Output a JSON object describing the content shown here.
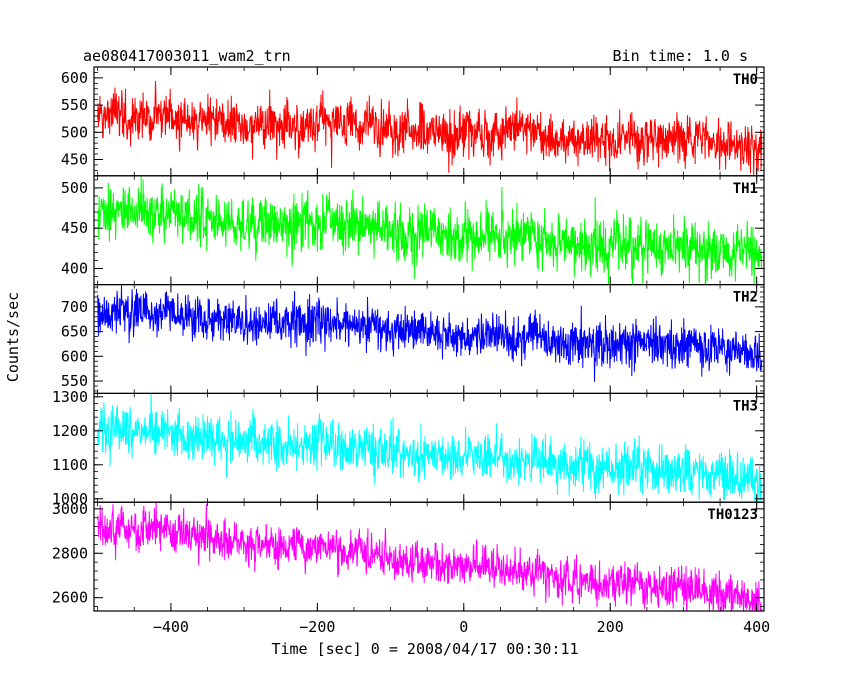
{
  "chart_data": {
    "type": "line",
    "title": "ae080417003011_wam2_trn",
    "subtitle": "Bin time: 1.0 s",
    "xlabel": "Time [sec] 0 = 2008/04/17 00:30:11",
    "ylabel": "Counts/sec",
    "xlim": [
      -505,
      410
    ],
    "x_ticks": [
      -400,
      -200,
      0,
      200,
      400
    ],
    "x_tick_labels": [
      "−400",
      "−200",
      "0",
      "200",
      "400"
    ],
    "grid": false,
    "panels": [
      {
        "name": "TH0",
        "color": "#ff0000",
        "ylim": [
          420,
          620
        ],
        "ticks": [
          450,
          500,
          550,
          600
        ],
        "tick_labels": [
          "450",
          "500",
          "550",
          "600"
        ],
        "start": 530,
        "end": 478,
        "noise": 27,
        "lag": 20
      },
      {
        "name": "TH1",
        "color": "#00ff00",
        "ylim": [
          380,
          515
        ],
        "ticks": [
          400,
          450,
          500
        ],
        "tick_labels": [
          "400",
          "450",
          "500"
        ],
        "start": 472,
        "end": 418,
        "noise": 21,
        "lag": 12
      },
      {
        "name": "TH2",
        "color": "#0000ff",
        "ylim": [
          525,
          745
        ],
        "ticks": [
          550,
          600,
          650,
          700
        ],
        "tick_labels": [
          "550",
          "600",
          "650",
          "700"
        ],
        "start": 690,
        "end": 608,
        "noise": 28,
        "lag": 18
      },
      {
        "name": "TH3",
        "color": "#00ffff",
        "ylim": [
          990,
          1310
        ],
        "ticks": [
          1000,
          1100,
          1200,
          1300
        ],
        "tick_labels": [
          "1000",
          "1100",
          "1200",
          "1300"
        ],
        "start": 1205,
        "end": 1060,
        "noise": 42,
        "lag": 28
      },
      {
        "name": "TH0123",
        "color": "#ff00ff",
        "ylim": [
          2540,
          3030
        ],
        "ticks": [
          2600,
          2800,
          3000
        ],
        "tick_labels": [
          "2600",
          "2800",
          "3000"
        ],
        "start": 2925,
        "end": 2595,
        "noise": 55,
        "lag": 40
      }
    ]
  }
}
